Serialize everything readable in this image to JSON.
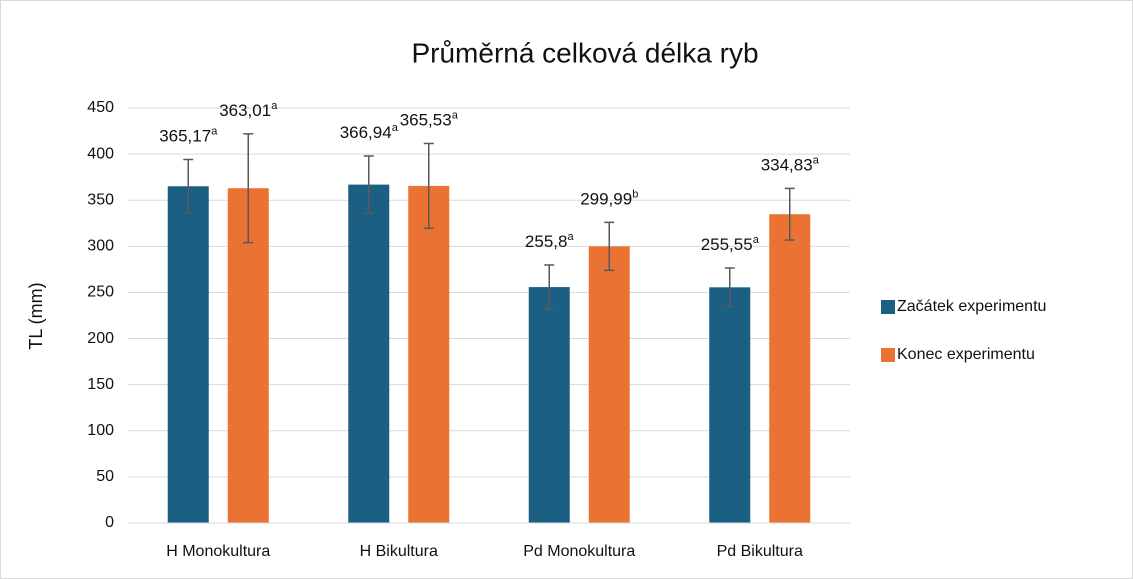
{
  "chart_data": {
    "type": "bar",
    "title": "Průměrná celková délka ryb",
    "y_label": "TL (mm)",
    "categories": [
      "H Monokultura",
      "H Bikultura",
      "Pd Monokultura",
      "Pd Bikultura"
    ],
    "series": [
      {
        "name": "Začátek experimentu",
        "color": "#1b5f82",
        "values": [
          365.17,
          366.94,
          255.8,
          255.55
        ],
        "value_labels": [
          "365,17",
          "366,94",
          "255,8",
          "255,55"
        ],
        "letters": [
          "a",
          "a",
          "a",
          "a"
        ],
        "errors": [
          29,
          31,
          24,
          21
        ]
      },
      {
        "name": "Konec experimentu",
        "color": "#ea7232",
        "values": [
          363.01,
          365.53,
          299.99,
          334.83
        ],
        "value_labels": [
          "363,01",
          "365,53",
          "299,99",
          "334,83"
        ],
        "letters": [
          "a",
          "a",
          "b",
          "a"
        ],
        "errors": [
          59,
          46,
          26,
          28
        ]
      }
    ],
    "ylim": [
      0,
      450
    ],
    "yticks": [
      0,
      50,
      100,
      150,
      200,
      250,
      300,
      350,
      400,
      450
    ],
    "grid": true,
    "legend": "right"
  }
}
